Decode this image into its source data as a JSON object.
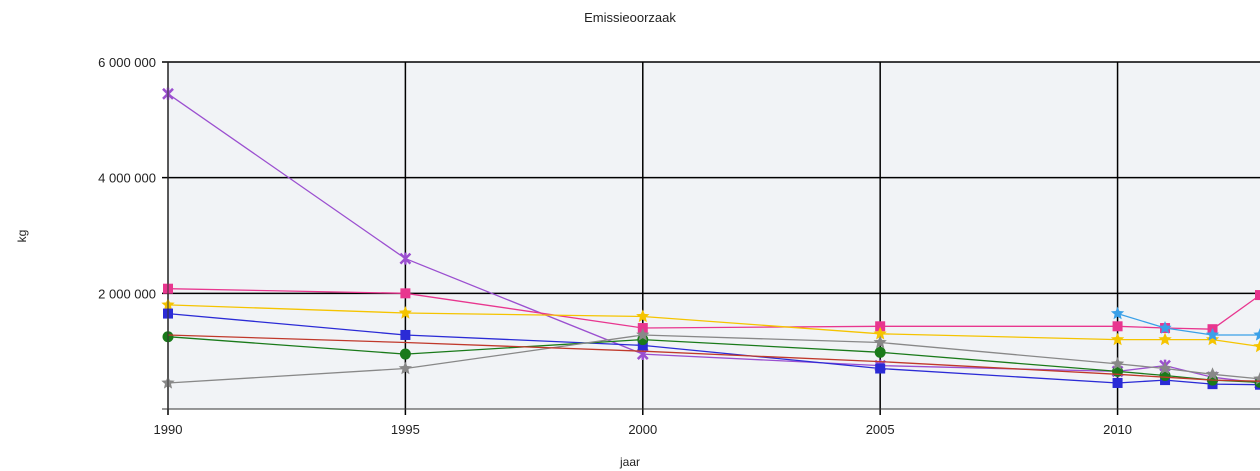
{
  "chart_data": {
    "type": "line",
    "title": "Emissieoorzaak",
    "xlabel": "jaar",
    "ylabel": "kg",
    "xlim": [
      1990,
      2013
    ],
    "ylim": [
      0,
      6000000
    ],
    "x_ticks": [
      1990,
      1995,
      2000,
      2005,
      2010
    ],
    "x_tick_labels": [
      "1990",
      "1995",
      "2000",
      "2005",
      "2010"
    ],
    "y_ticks": [
      2000000,
      4000000,
      6000000
    ],
    "y_tick_labels": [
      "2 000 000",
      "4 000 000",
      "6 000 000"
    ],
    "grid": true,
    "legend": "none",
    "series": [
      {
        "color": "#9b4fd0",
        "marker": "x",
        "points": [
          [
            1990,
            5450000
          ],
          [
            1995,
            2600000
          ],
          [
            2000,
            950000
          ],
          [
            2005,
            750000
          ],
          [
            2010,
            650000
          ],
          [
            2011,
            750000
          ],
          [
            2012,
            550000
          ],
          [
            2013,
            450000
          ]
        ]
      },
      {
        "color": "#e8368f",
        "marker": "square",
        "points": [
          [
            1990,
            2080000
          ],
          [
            1995,
            2000000
          ],
          [
            2000,
            1400000
          ],
          [
            2005,
            1430000
          ],
          [
            2010,
            1430000
          ],
          [
            2011,
            1400000
          ],
          [
            2012,
            1380000
          ],
          [
            2013,
            1970000
          ]
        ]
      },
      {
        "color": "#f5c400",
        "marker": "star",
        "points": [
          [
            1990,
            1800000
          ],
          [
            1995,
            1660000
          ],
          [
            2000,
            1600000
          ],
          [
            2005,
            1300000
          ],
          [
            2010,
            1200000
          ],
          [
            2011,
            1200000
          ],
          [
            2012,
            1200000
          ],
          [
            2013,
            1080000
          ]
        ]
      },
      {
        "color": "#2b2bd6",
        "marker": "square",
        "points": [
          [
            1990,
            1650000
          ],
          [
            1995,
            1280000
          ],
          [
            2000,
            1100000
          ],
          [
            2005,
            700000
          ],
          [
            2010,
            450000
          ],
          [
            2011,
            500000
          ],
          [
            2012,
            430000
          ],
          [
            2013,
            420000
          ]
        ]
      },
      {
        "color": "#1a7a1a",
        "marker": "circle",
        "points": [
          [
            1990,
            1250000
          ],
          [
            1995,
            950000
          ],
          [
            2000,
            1200000
          ],
          [
            2005,
            980000
          ],
          [
            2010,
            650000
          ],
          [
            2011,
            580000
          ],
          [
            2012,
            500000
          ],
          [
            2013,
            460000
          ]
        ]
      },
      {
        "color": "#888888",
        "marker": "star",
        "points": [
          [
            1990,
            450000
          ],
          [
            1995,
            700000
          ],
          [
            2000,
            1280000
          ],
          [
            2005,
            1150000
          ],
          [
            2010,
            780000
          ],
          [
            2011,
            700000
          ],
          [
            2012,
            600000
          ],
          [
            2013,
            520000
          ]
        ]
      },
      {
        "color": "#c0392b",
        "marker": "none",
        "points": [
          [
            1990,
            1280000
          ],
          [
            1995,
            1150000
          ],
          [
            2000,
            1000000
          ],
          [
            2005,
            820000
          ],
          [
            2010,
            600000
          ],
          [
            2011,
            550000
          ],
          [
            2012,
            500000
          ],
          [
            2013,
            480000
          ]
        ]
      },
      {
        "color": "#3aa0e8",
        "marker": "star",
        "points": [
          [
            2010,
            1650000
          ],
          [
            2011,
            1400000
          ],
          [
            2012,
            1280000
          ],
          [
            2013,
            1280000
          ]
        ]
      }
    ]
  }
}
